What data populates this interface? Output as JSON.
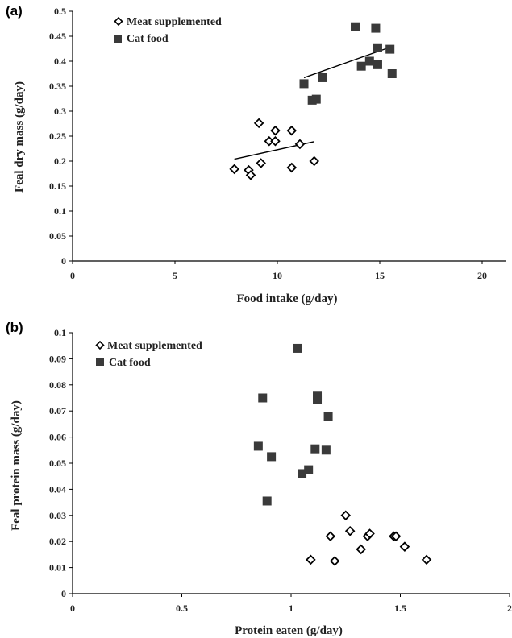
{
  "chart_data": [
    {
      "type": "scatter",
      "panel_label": "(a)",
      "xlabel": "Food intake (g/day)",
      "ylabel": "Feal dry mass (g/day)",
      "xlim": [
        0,
        20
      ],
      "ylim": [
        0,
        0.5
      ],
      "xticks": [
        "0",
        "5",
        "10",
        "15",
        "20"
      ],
      "yticks": [
        "0",
        "0.05",
        "0.1",
        "0.15",
        "0.2",
        "0.25",
        "0.3",
        "0.35",
        "0.4",
        "0.45",
        "0.5"
      ],
      "legend_position": "top-left",
      "grid": false,
      "series": [
        {
          "name": "Meat supplemented",
          "marker": "diamond-open",
          "color": "#000000",
          "points": [
            [
              7.9,
              0.184
            ],
            [
              8.6,
              0.182
            ],
            [
              8.7,
              0.172
            ],
            [
              9.2,
              0.196
            ],
            [
              9.1,
              0.276
            ],
            [
              9.6,
              0.24
            ],
            [
              9.9,
              0.24
            ],
            [
              9.9,
              0.261
            ],
            [
              10.7,
              0.261
            ],
            [
              10.7,
              0.187
            ],
            [
              11.1,
              0.234
            ],
            [
              11.8,
              0.2
            ]
          ],
          "trendline": [
            [
              7.9,
              0.204
            ],
            [
              11.8,
              0.239
            ]
          ]
        },
        {
          "name": "Cat food",
          "marker": "square",
          "color": "#3a3a3a",
          "points": [
            [
              11.3,
              0.355
            ],
            [
              11.7,
              0.322
            ],
            [
              11.9,
              0.324
            ],
            [
              12.2,
              0.367
            ],
            [
              13.8,
              0.469
            ],
            [
              14.1,
              0.39
            ],
            [
              14.5,
              0.4
            ],
            [
              14.8,
              0.466
            ],
            [
              14.9,
              0.427
            ],
            [
              14.9,
              0.393
            ],
            [
              15.5,
              0.424
            ],
            [
              15.6,
              0.375
            ]
          ],
          "trendline": [
            [
              11.3,
              0.367
            ],
            [
              15.5,
              0.428
            ]
          ]
        }
      ]
    },
    {
      "type": "scatter",
      "panel_label": "(b)",
      "xlabel": "Protein eaten (g/day)",
      "ylabel": "Feal protein mass (g/day)",
      "xlim": [
        0,
        2
      ],
      "ylim": [
        0,
        0.1
      ],
      "xticks": [
        "0",
        "0.5",
        "1",
        "1.5",
        "2"
      ],
      "yticks": [
        "0",
        "0.01",
        "0.02",
        "0.03",
        "0.04",
        "0.05",
        "0.06",
        "0.07",
        "0.08",
        "0.09",
        "0.1"
      ],
      "legend_position": "top-left",
      "grid": false,
      "series": [
        {
          "name": "Meat supplemented",
          "marker": "diamond-open",
          "color": "#000000",
          "points": [
            [
              1.09,
              0.013
            ],
            [
              1.18,
              0.022
            ],
            [
              1.2,
              0.0125
            ],
            [
              1.25,
              0.03
            ],
            [
              1.27,
              0.024
            ],
            [
              1.32,
              0.017
            ],
            [
              1.35,
              0.022
            ],
            [
              1.36,
              0.023
            ],
            [
              1.47,
              0.022
            ],
            [
              1.48,
              0.022
            ],
            [
              1.52,
              0.018
            ],
            [
              1.62,
              0.013
            ]
          ]
        },
        {
          "name": "Cat food",
          "marker": "square",
          "color": "#3a3a3a",
          "points": [
            [
              0.85,
              0.0565
            ],
            [
              0.87,
              0.075
            ],
            [
              0.89,
              0.0355
            ],
            [
              0.91,
              0.0525
            ],
            [
              1.03,
              0.094
            ],
            [
              1.05,
              0.046
            ],
            [
              1.08,
              0.0475
            ],
            [
              1.11,
              0.0555
            ],
            [
              1.12,
              0.076
            ],
            [
              1.12,
              0.0745
            ],
            [
              1.16,
              0.055
            ],
            [
              1.17,
              0.068
            ]
          ]
        }
      ]
    }
  ]
}
